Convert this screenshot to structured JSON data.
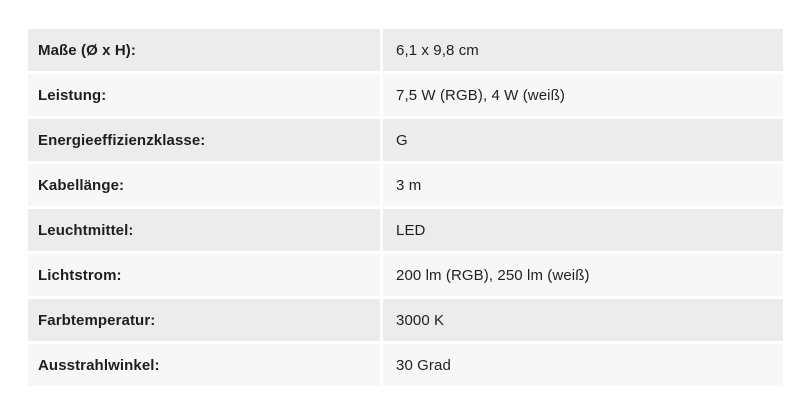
{
  "spec_table": {
    "rows": [
      {
        "label": "Maße (Ø x H):",
        "value": "6,1 x 9,8 cm"
      },
      {
        "label": "Leistung:",
        "value": "7,5 W (RGB), 4 W (weiß)"
      },
      {
        "label": "Energieeffizienzklasse:",
        "value": "G"
      },
      {
        "label": "Kabellänge:",
        "value": "3 m"
      },
      {
        "label": "Leuchtmittel:",
        "value": "LED"
      },
      {
        "label": "Lichtstrom:",
        "value": "200 lm (RGB), 250 lm (weiß)"
      },
      {
        "label": "Farbtemperatur:",
        "value": "3000 K"
      },
      {
        "label": "Ausstrahlwinkel:",
        "value": "30 Grad"
      }
    ],
    "colors": {
      "row_odd_bg": "#ececec",
      "row_even_bg": "#f7f7f7",
      "text": "#1f1f1f",
      "page_bg": "#ffffff"
    }
  }
}
